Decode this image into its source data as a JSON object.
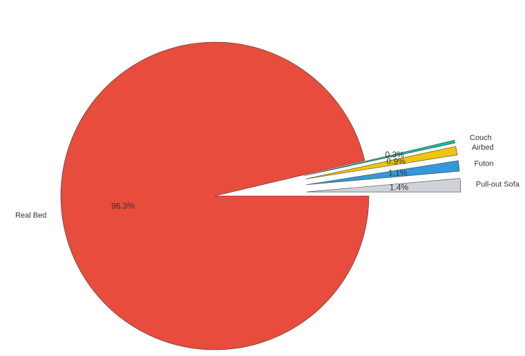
{
  "chart_data": {
    "type": "pie",
    "title": "",
    "categories": [
      "Real Bed",
      "Couch",
      "Airbed",
      "Futon",
      "Pull-out Sofa"
    ],
    "values": [
      96.3,
      0.3,
      0.9,
      1.1,
      1.4
    ],
    "value_labels": [
      "96.3%",
      "0.3%",
      "0.9%",
      "1.1%",
      "1.4%"
    ],
    "colors": [
      "#e74c3c",
      "#1abc9c",
      "#f1c40f",
      "#3498db",
      "#d0d4d8"
    ],
    "exploded": [
      false,
      true,
      true,
      true,
      true
    ],
    "start": "3 o'clock",
    "direction": "clockwise",
    "legend": "none"
  }
}
